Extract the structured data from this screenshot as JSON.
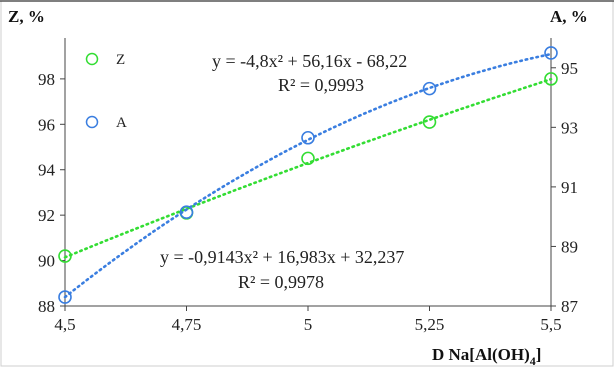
{
  "chart_data": {
    "type": "scatter",
    "y_left_title": "Z, %",
    "y_right_title": "A, %",
    "x_title_main": "D Na[Al(OH)",
    "x_title_sub": "4",
    "x_title_close": "]",
    "x": [
      4.5,
      4.75,
      5,
      5.25,
      5.5
    ],
    "x_tick_labels": [
      "4,5",
      "4,75",
      "5",
      "5,25",
      "5,5"
    ],
    "xlim": [
      4.5,
      5.5
    ],
    "y_left_ticks": [
      88,
      90,
      92,
      94,
      96,
      98
    ],
    "y_left_tick_labels": [
      "88",
      "90",
      "92",
      "94",
      "96",
      "98"
    ],
    "y_left_lim": [
      88,
      99.8
    ],
    "y_right_ticks": [
      87,
      89,
      91,
      93,
      95
    ],
    "y_right_tick_labels": [
      "87",
      "89",
      "91",
      "93",
      "95"
    ],
    "y_right_lim": [
      87,
      96
    ],
    "grid": false,
    "series": [
      {
        "name": "Z",
        "axis": "left",
        "color": "#33dd33",
        "values": [
          90.2,
          92.1,
          94.5,
          96.1,
          98.0
        ],
        "trend": {
          "type": "poly2",
          "a": -0.9143,
          "b": 16.983,
          "c": 32.237
        },
        "equation": "y = -0,9143x² + 16,983x + 32,237",
        "r2": "R² = 0,9978"
      },
      {
        "name": "A",
        "axis": "right",
        "color": "#3a7ee0",
        "values": [
          87.3,
          90.15,
          92.65,
          94.3,
          95.5
        ],
        "trend": {
          "type": "poly2",
          "a": -4.8,
          "b": 56.16,
          "c": -68.22
        },
        "equation": "y = -4,8x² + 56,16x - 68,22",
        "r2": "R² = 0,9993"
      }
    ],
    "legend_position": "top-left"
  }
}
